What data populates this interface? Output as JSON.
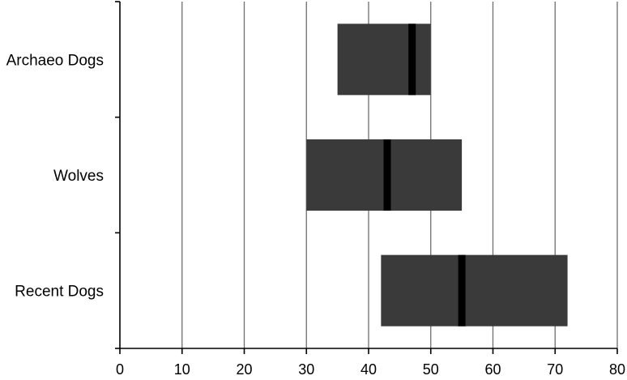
{
  "chart_data": {
    "type": "bar",
    "orientation": "horizontal",
    "title": "",
    "xlabel": "",
    "ylabel": "",
    "xlim": [
      0,
      80
    ],
    "x_ticks": [
      0,
      10,
      20,
      30,
      40,
      50,
      60,
      70,
      80
    ],
    "x_tick_labels": [
      "0",
      "10",
      "20",
      "30",
      "40",
      "50",
      "60",
      "70",
      "80"
    ],
    "grid": "vertical",
    "legend": "none",
    "categories": [
      "Archaeo Dogs",
      "Wolves",
      "Recent Dogs"
    ],
    "ranges": [
      {
        "category": "Archaeo Dogs",
        "min": 35,
        "max": 50,
        "median": 47
      },
      {
        "category": "Wolves",
        "min": 30,
        "max": 55,
        "median": 43
      },
      {
        "category": "Recent Dogs",
        "min": 42,
        "max": 72,
        "median": 55
      }
    ],
    "colors": {
      "bar": "#3a3a3a",
      "median": "#000000",
      "grid": "#6e6e6e",
      "axis": "#000000"
    }
  }
}
